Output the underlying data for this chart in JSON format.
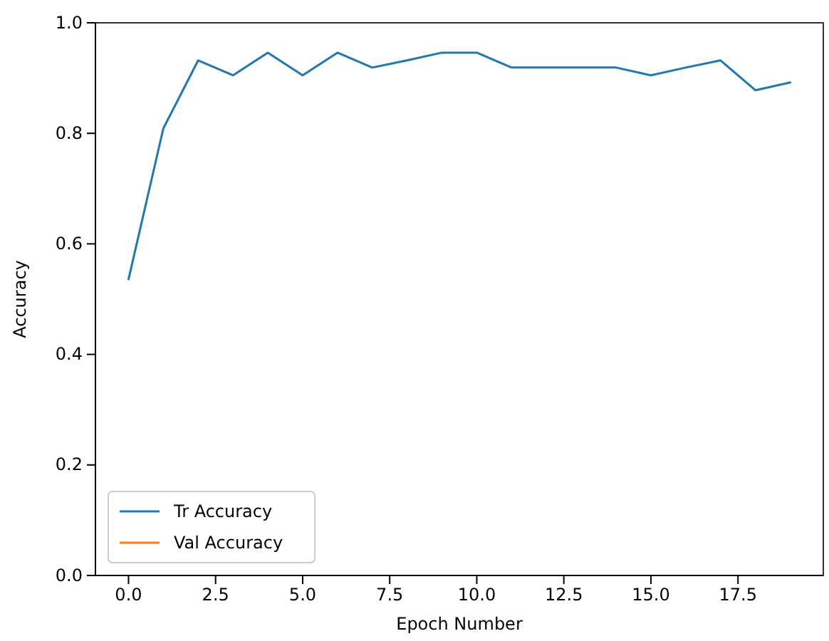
{
  "chart_data": {
    "type": "line",
    "xlabel": "Epoch Number",
    "ylabel": "Accuracy",
    "x": [
      0,
      1,
      2,
      3,
      4,
      5,
      6,
      7,
      8,
      9,
      10,
      11,
      12,
      13,
      14,
      15,
      16,
      17,
      18,
      19
    ],
    "series": [
      {
        "name": "Tr Accuracy",
        "color": "#1f77b4",
        "values": [
          0.536,
          0.809,
          0.932,
          0.905,
          0.946,
          0.905,
          0.946,
          0.919,
          0.932,
          0.946,
          0.946,
          0.919,
          0.919,
          0.919,
          0.919,
          0.905,
          0.919,
          0.932,
          0.878,
          0.892
        ]
      },
      {
        "name": "Val Accuracy",
        "color": "#ff7f0e",
        "values": [
          null,
          null,
          null,
          null,
          null,
          null,
          null,
          null,
          null,
          null,
          null,
          null,
          null,
          null,
          null,
          null,
          null,
          null,
          null,
          null
        ]
      }
    ],
    "xlim": [
      -0.95,
      19.95
    ],
    "xticks": [
      {
        "value": 0,
        "label": "0.0"
      },
      {
        "value": 2.5,
        "label": "2.5"
      },
      {
        "value": 5,
        "label": "5.0"
      },
      {
        "value": 7.5,
        "label": "7.5"
      },
      {
        "value": 10,
        "label": "10.0"
      },
      {
        "value": 12.5,
        "label": "12.5"
      },
      {
        "value": 15,
        "label": "15.0"
      },
      {
        "value": 17.5,
        "label": "17.5"
      }
    ],
    "ylim": [
      0,
      1
    ],
    "yticks": [
      {
        "value": 0,
        "label": "0.0"
      },
      {
        "value": 0.2,
        "label": "0.2"
      },
      {
        "value": 0.4,
        "label": "0.4"
      },
      {
        "value": 0.6,
        "label": "0.6"
      },
      {
        "value": 0.8,
        "label": "0.8"
      },
      {
        "value": 1,
        "label": "1.0"
      }
    ],
    "legend": "bottom left"
  }
}
